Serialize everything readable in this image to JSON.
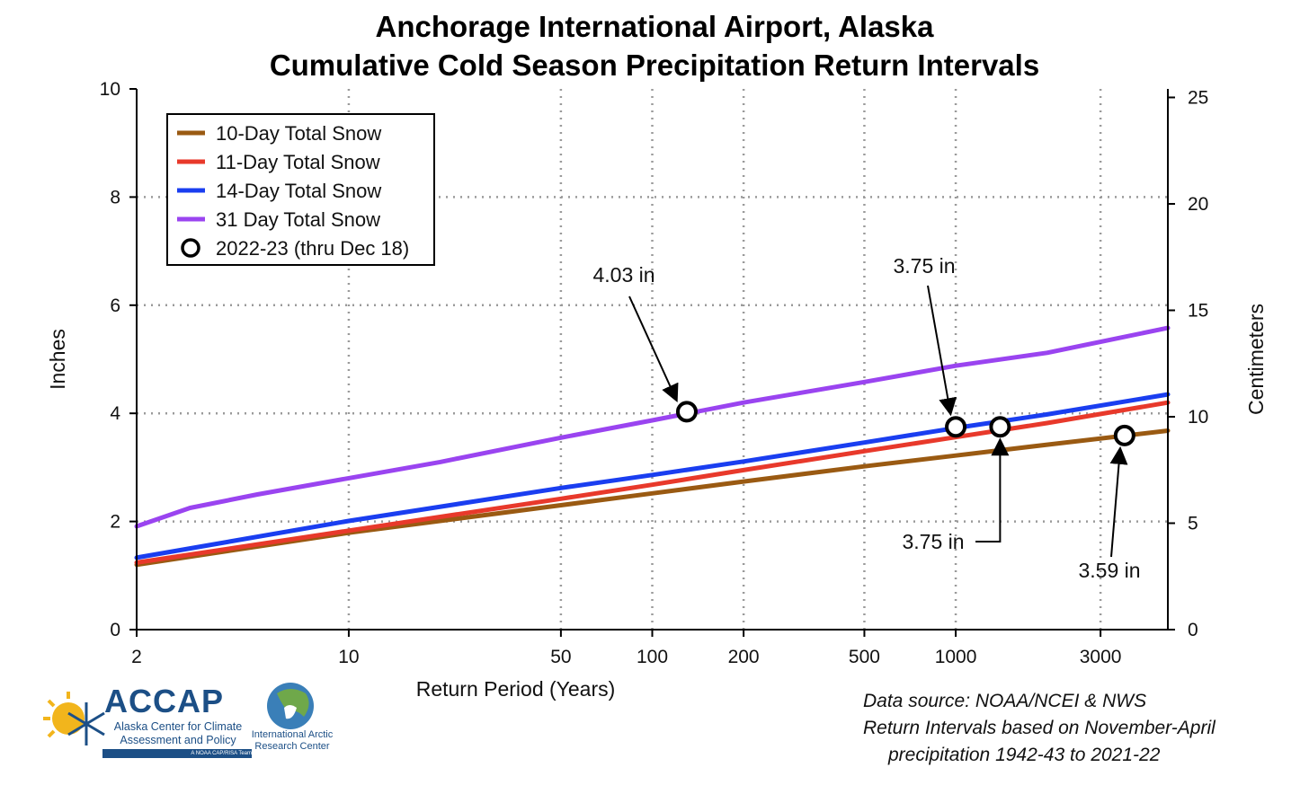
{
  "title_line1": "Anchorage International Airport, Alaska",
  "title_line2": "Cumulative Cold Season Precipitation Return Intervals",
  "source_lines": [
    "Data source: NOAA/NCEI & NWS",
    "Return Intervals based on November-April",
    "precipitation 1942-43 to 2021-22"
  ],
  "logos": {
    "accap_word": "ACCAP",
    "accap_sub": "Alaska Center for Climate Assessment and Policy",
    "accap_bar": "A NOAA CAP/RISA Team",
    "iarc_text": "International Arctic Research Center"
  },
  "chart_data": {
    "type": "line",
    "xlabel": "Return Period (Years)",
    "ylabel": "Inches",
    "y2label": "Centimeters",
    "x_scale": "log",
    "xlim": [
      2,
      5000
    ],
    "ylim": [
      0,
      10
    ],
    "y2lim": [
      0,
      25.4
    ],
    "x_ticks": [
      2,
      10,
      50,
      100,
      200,
      500,
      1000,
      3000
    ],
    "y_ticks": [
      0,
      2,
      4,
      6,
      8,
      10
    ],
    "y2_ticks": [
      0,
      5,
      10,
      15,
      20,
      25
    ],
    "grid": true,
    "legend_position": "top-left",
    "series": [
      {
        "name": "10-Day Total Snow",
        "color": "#9a5a12",
        "x": [
          2,
          10,
          50,
          100,
          200,
          500,
          1000,
          2000,
          5000
        ],
        "y": [
          1.2,
          1.79,
          2.3,
          2.52,
          2.74,
          3.02,
          3.22,
          3.42,
          3.68
        ]
      },
      {
        "name": "11-Day Total Snow",
        "color": "#e8392b",
        "x": [
          2,
          10,
          50,
          100,
          200,
          500,
          1000,
          2000,
          5000
        ],
        "y": [
          1.24,
          1.83,
          2.42,
          2.68,
          2.95,
          3.3,
          3.56,
          3.82,
          4.2
        ]
      },
      {
        "name": "14-Day Total Snow",
        "color": "#1a3ef0",
        "x": [
          2,
          10,
          50,
          100,
          200,
          500,
          1000,
          2000,
          5000
        ],
        "y": [
          1.33,
          2.01,
          2.62,
          2.86,
          3.11,
          3.46,
          3.73,
          3.98,
          4.35
        ]
      },
      {
        "name": "31 Day Total Snow",
        "color": "#9a44f0",
        "x": [
          2,
          3,
          5,
          10,
          20,
          50,
          100,
          200,
          500,
          1000,
          2000,
          5000
        ],
        "y": [
          1.91,
          2.25,
          2.5,
          2.8,
          3.1,
          3.55,
          3.87,
          4.2,
          4.58,
          4.88,
          5.12,
          5.58
        ]
      }
    ],
    "points": {
      "name": "2022-23 (thru Dec 18)",
      "items": [
        {
          "x": 130,
          "y": 4.03,
          "label": "4.03 in"
        },
        {
          "x": 1000,
          "y": 3.75,
          "label": "3.75 in"
        },
        {
          "x": 1400,
          "y": 3.75,
          "label": "3.75 in"
        },
        {
          "x": 3600,
          "y": 3.59,
          "label": "3.59 in"
        }
      ]
    }
  }
}
